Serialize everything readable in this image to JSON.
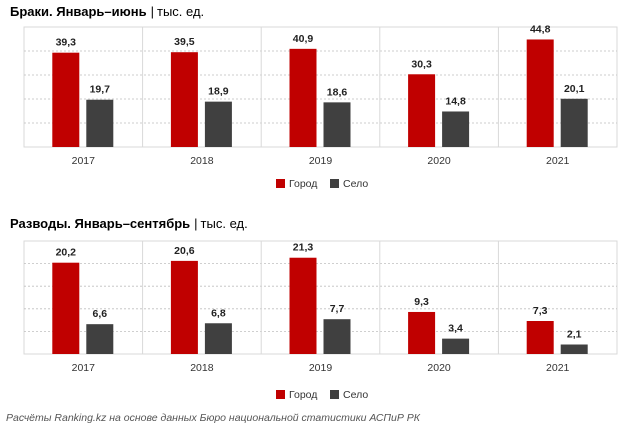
{
  "colors": {
    "city": "#C00000",
    "village": "#404040",
    "gridline": "#bfbfbf",
    "border": "#d9d9d9"
  },
  "chart_data": [
    {
      "type": "bar",
      "title": "Браки. Январь–июнь",
      "unit": "тыс. ед.",
      "categories": [
        "2017",
        "2018",
        "2019",
        "2020",
        "2021"
      ],
      "series": [
        {
          "name": "Город",
          "values": [
            39.3,
            39.5,
            40.9,
            30.3,
            44.8
          ]
        },
        {
          "name": "Село",
          "values": [
            19.7,
            18.9,
            18.6,
            14.8,
            20.1
          ]
        }
      ],
      "value_labels": {
        "Город": [
          "39,3",
          "39,5",
          "40,9",
          "30,3",
          "44,8"
        ],
        "Село": [
          "19,7",
          "18,9",
          "18,6",
          "14,8",
          "20,1"
        ]
      },
      "ylim": [
        0,
        50
      ],
      "legend": "bottom-center",
      "grid": true
    },
    {
      "type": "bar",
      "title": "Разводы. Январь–сентябрь",
      "unit": "тыс. ед.",
      "categories": [
        "2017",
        "2018",
        "2019",
        "2020",
        "2021"
      ],
      "series": [
        {
          "name": "Город",
          "values": [
            20.2,
            20.6,
            21.3,
            9.3,
            7.3
          ]
        },
        {
          "name": "Село",
          "values": [
            6.6,
            6.8,
            7.7,
            3.4,
            2.1
          ]
        }
      ],
      "value_labels": {
        "Город": [
          "20,2",
          "20,6",
          "21,3",
          "9,3",
          "7,3"
        ],
        "Село": [
          "6,6",
          "6,8",
          "7,7",
          "3,4",
          "2,1"
        ]
      },
      "ylim": [
        0,
        25
      ],
      "legend": "bottom-center",
      "grid": true
    }
  ],
  "footnote": "Расчёты Ranking.kz на основе данных Бюро национальной статистики АСПиР РК"
}
